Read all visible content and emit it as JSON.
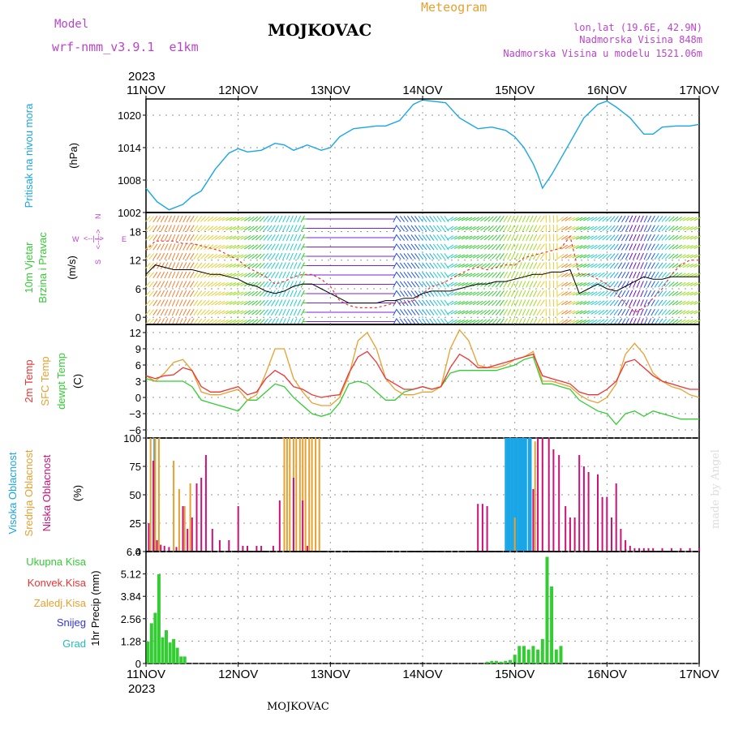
{
  "header": {
    "model_label": "Model",
    "model_name": "wrf-nmm_v3.9.1  e1km",
    "station": "MOJKOVAC",
    "meteogram_label": "Meteogram",
    "lonlat": "lon,lat (19.6E, 42.9N)",
    "altitude": "Nadmorska Visina 848m",
    "model_altitude": "Nadmorska Visina u modelu 1521.06m",
    "year_top": "2023",
    "year_bottom": "2023",
    "footer_station": "MOJKOVAC",
    "credit": "made by Angel"
  },
  "colors": {
    "pressure": "#1aa6e6",
    "green": "#33cc33",
    "red": "#ee3333",
    "orange": "#e8a030",
    "purple": "#bb44cc",
    "magenta": "#cc1177",
    "blue": "#3333ee",
    "cyan": "#22bbbb"
  },
  "chart_data": [
    {
      "type": "line",
      "panel": "pressure",
      "ylabel_lines": [
        "Pritisak na nivou mora",
        "(hPa)"
      ],
      "ylim": [
        1002,
        1023
      ],
      "yticks": [
        "1002",
        "1008",
        "1014",
        "1020"
      ],
      "x_unit": "days since 11NOV 00UTC",
      "x": [
        0,
        0.12,
        0.25,
        0.4,
        0.5,
        0.6,
        0.75,
        0.9,
        1.0,
        1.1,
        1.25,
        1.4,
        1.5,
        1.6,
        1.75,
        1.9,
        2.0,
        2.1,
        2.25,
        2.4,
        2.5,
        2.6,
        2.75,
        2.9,
        3.0,
        3.1,
        3.25,
        3.4,
        3.5,
        3.6,
        3.75,
        3.9,
        4.0,
        4.1,
        4.2,
        4.25,
        4.3,
        4.4,
        4.5,
        4.6,
        4.75,
        4.9,
        5.0,
        5.1,
        5.25,
        5.4,
        5.5,
        5.6,
        5.75,
        5.9,
        6.0
      ],
      "series": [
        {
          "name": "MSLP",
          "values": [
            1006.5,
            1004,
            1002.5,
            1003.5,
            1005,
            1006,
            1010,
            1013,
            1013.8,
            1013.2,
            1013.5,
            1014.8,
            1014.5,
            1013.5,
            1014.5,
            1013.5,
            1014,
            1016,
            1017.5,
            1017.8,
            1018,
            1018,
            1019,
            1022,
            1022.8,
            1022.6,
            1022.3,
            1019.5,
            1018.5,
            1017.5,
            1017.8,
            1017.2,
            1016,
            1014,
            1011,
            1009,
            1006.5,
            1009,
            1012,
            1015,
            1019.5,
            1022,
            1022.6,
            1021.5,
            1019.5,
            1016.5,
            1016.5,
            1017.8,
            1018,
            1018,
            1018.3
          ]
        }
      ]
    },
    {
      "type": "scatter",
      "panel": "wind",
      "ylabel_lines": [
        "10m Vjetar",
        "Brzina i Pravac",
        "(m/s)"
      ],
      "compass": {
        "n": "N",
        "w": "W",
        "e": "E",
        "s": "S",
        "arrows": "<--|-->"
      },
      "ylim": [
        -1.5,
        22
      ],
      "yticks": [
        "0",
        "6",
        "12",
        "18"
      ],
      "x_unit": "days since 11NOV 00UTC",
      "x": [
        0,
        0.1,
        0.2,
        0.3,
        0.4,
        0.5,
        0.6,
        0.7,
        0.8,
        0.9,
        1.0,
        1.1,
        1.2,
        1.3,
        1.4,
        1.5,
        1.6,
        1.7,
        1.8,
        1.9,
        2.0,
        2.1,
        2.2,
        2.3,
        2.4,
        2.5,
        2.6,
        2.7,
        2.8,
        2.9,
        3.0,
        3.1,
        3.2,
        3.3,
        3.4,
        3.5,
        3.6,
        3.7,
        3.8,
        3.9,
        4.0,
        4.1,
        4.2,
        4.3,
        4.4,
        4.5,
        4.6,
        4.7,
        4.8,
        4.9,
        5.0,
        5.1,
        5.2,
        5.3,
        5.4,
        5.5,
        5.6,
        5.7,
        5.8,
        5.9,
        6.0
      ],
      "series": [
        {
          "name": "mean",
          "values": [
            9,
            11,
            10.5,
            10,
            10,
            10,
            9.5,
            9,
            9,
            8.5,
            8,
            7,
            6.5,
            5.5,
            5,
            5.5,
            6.5,
            7,
            7,
            6,
            5,
            4,
            3,
            3,
            3,
            3,
            3.5,
            3.5,
            4,
            4,
            5,
            5.5,
            5.5,
            5.5,
            6,
            6.5,
            7,
            7,
            7.5,
            7.5,
            8,
            8.5,
            9,
            9,
            9.5,
            9.5,
            10,
            5,
            6,
            7,
            6,
            5.5,
            6.5,
            7.5,
            8.5,
            8,
            8,
            8.5,
            8.5,
            8.5,
            8.5
          ]
        },
        {
          "name": "gust",
          "values": [
            14,
            16,
            16,
            16,
            15.5,
            15.5,
            15,
            14.5,
            14,
            13,
            12,
            10.5,
            9.5,
            8.5,
            7,
            7.5,
            8.5,
            9,
            9,
            8,
            6.5,
            3.5,
            2.5,
            2,
            2,
            2,
            2.5,
            3,
            3,
            3.5,
            5,
            6.5,
            7,
            8,
            9,
            10,
            10.5,
            10,
            10.5,
            11,
            11,
            12.5,
            13,
            13.5,
            14,
            14.5,
            17,
            9,
            9,
            8,
            7,
            5,
            3,
            1,
            2,
            4,
            6,
            9,
            11,
            12,
            12
          ]
        }
      ]
    },
    {
      "type": "line",
      "panel": "temperature",
      "ylabel_lines": [
        "2m Temp",
        "SFC Temp",
        "dewpt Temp",
        "(C)"
      ],
      "ylim": [
        -7.5,
        13.5
      ],
      "yticks": [
        "12",
        "9",
        "6",
        "3",
        "0",
        "−3",
        "−6"
      ],
      "x_unit": "days since 11NOV 00UTC",
      "x": [
        0,
        0.1,
        0.2,
        0.3,
        0.4,
        0.5,
        0.6,
        0.7,
        0.8,
        0.9,
        1.0,
        1.1,
        1.2,
        1.3,
        1.4,
        1.5,
        1.6,
        1.7,
        1.8,
        1.9,
        2.0,
        2.1,
        2.2,
        2.3,
        2.4,
        2.5,
        2.6,
        2.7,
        2.8,
        2.9,
        3.0,
        3.1,
        3.2,
        3.3,
        3.4,
        3.5,
        3.6,
        3.7,
        3.8,
        3.9,
        4.0,
        4.1,
        4.2,
        4.3,
        4.4,
        4.5,
        4.6,
        4.7,
        4.8,
        4.9,
        5.0,
        5.1,
        5.2,
        5.3,
        5.4,
        5.5,
        5.6,
        5.7,
        5.8,
        5.9,
        6.0
      ],
      "series": [
        {
          "name": "2m Temp",
          "values": [
            4,
            3.5,
            4,
            4.2,
            5.5,
            5,
            2,
            1,
            1,
            1.5,
            2,
            0.5,
            1,
            3.5,
            5,
            4,
            2,
            1.5,
            0.5,
            0,
            0.3,
            0.5,
            4.5,
            7.5,
            8.5,
            6.5,
            3.5,
            2.5,
            1.5,
            1.5,
            2,
            1.5,
            2,
            5.5,
            8,
            7,
            5.5,
            5.5,
            6,
            6.5,
            7,
            7.5,
            8,
            4,
            3.5,
            3,
            2.5,
            1,
            0.5,
            0.5,
            1.5,
            3,
            6.5,
            7,
            5.5,
            4,
            3,
            2.5,
            2,
            1.5,
            1.5
          ]
        },
        {
          "name": "SFC Temp",
          "values": [
            4,
            3,
            4.5,
            6.5,
            7,
            5,
            1,
            0.5,
            0.5,
            1,
            1.5,
            -0.5,
            0.5,
            4.5,
            9,
            9,
            3.5,
            1,
            -1,
            -1.5,
            -1.5,
            0,
            4,
            10.5,
            12,
            9,
            3.5,
            1.5,
            0.5,
            0.5,
            1,
            1,
            2,
            9,
            12.5,
            10.5,
            6,
            5.5,
            5.5,
            6,
            7,
            7.5,
            8.5,
            3,
            3,
            2.5,
            2,
            0.5,
            -0.5,
            -1,
            0,
            2.5,
            8,
            10,
            8,
            4.5,
            3,
            2,
            1.5,
            0.5,
            0
          ]
        },
        {
          "name": "dewpt Temp",
          "values": [
            3.5,
            3,
            3,
            3,
            3,
            2,
            -0.5,
            -1,
            -1.5,
            -2,
            -2.5,
            -0.5,
            -0.5,
            1,
            2.5,
            2,
            0,
            -1.5,
            -3,
            -3.5,
            -3,
            -1,
            2.5,
            3,
            2.5,
            1,
            -0.5,
            -0.5,
            1,
            1.5,
            2,
            1.5,
            2,
            4.5,
            5,
            5,
            5,
            5,
            5,
            5.5,
            6,
            7,
            7.5,
            2.5,
            2.5,
            2,
            1.5,
            -0.5,
            -1.5,
            -2.5,
            -3,
            -5,
            -3,
            -2.5,
            -3.5,
            -2.5,
            -3,
            -3.5,
            -4,
            -4,
            -4
          ]
        }
      ]
    },
    {
      "type": "bar",
      "panel": "cloudiness",
      "ylabel_lines": [
        "Visoka Oblacnost",
        "Srednja Oblacnost",
        "Niska Oblacnost",
        "(%)"
      ],
      "ylim": [
        0,
        100
      ],
      "yticks": [
        "0",
        "25",
        "50",
        "75",
        "100"
      ],
      "x_unit": "days since 11NOV 00UTC",
      "series": [
        {
          "name": "Visoka Oblacnost",
          "x": [
            0.09,
            3.9,
            3.92,
            3.94,
            3.96,
            3.98,
            4.0,
            4.02,
            4.04,
            4.06,
            4.08,
            4.1,
            4.12,
            4.15,
            4.17,
            5.2
          ],
          "values": [
            100,
            100,
            100,
            100,
            100,
            100,
            100,
            100,
            100,
            100,
            100,
            100,
            100,
            100,
            100,
            2
          ]
        },
        {
          "name": "Srednja Oblacnost",
          "x": [
            0.05,
            0.1,
            0.14,
            0.3,
            0.36,
            0.42,
            0.48,
            1.5,
            1.53,
            1.56,
            1.6,
            1.63,
            1.67,
            1.7,
            1.73,
            1.77,
            1.8,
            1.84,
            1.88,
            4.0,
            4.22,
            4.6
          ],
          "values": [
            100,
            100,
            100,
            80,
            55,
            40,
            60,
            100,
            100,
            100,
            100,
            100,
            100,
            100,
            100,
            100,
            100,
            100,
            100,
            30,
            97,
            20
          ]
        },
        {
          "name": "Niska Oblacnost",
          "x": [
            0.03,
            0.08,
            0.12,
            0.16,
            0.2,
            0.25,
            0.33,
            0.4,
            0.45,
            0.5,
            0.55,
            0.6,
            0.65,
            0.72,
            0.8,
            0.9,
            1.0,
            1.05,
            1.1,
            1.2,
            1.25,
            1.38,
            1.45,
            1.6,
            1.7,
            1.75,
            3.6,
            3.65,
            3.7,
            4.2,
            4.25,
            4.3,
            4.37,
            4.42,
            4.48,
            4.55,
            4.6,
            4.65,
            4.7,
            4.75,
            4.8,
            4.9,
            4.95,
            5.0,
            5.05,
            5.1,
            5.15,
            5.2,
            5.25,
            5.3,
            5.35,
            5.4,
            5.45,
            5.5,
            5.6,
            5.7,
            5.8,
            5.9,
            6.0
          ],
          "values": [
            25,
            80,
            10,
            6,
            5,
            4,
            4,
            40,
            20,
            30,
            60,
            65,
            85,
            20,
            10,
            10,
            40,
            5,
            5,
            5,
            5,
            5,
            45,
            65,
            45,
            5,
            42,
            42,
            40,
            55,
            100,
            100,
            100,
            90,
            85,
            40,
            30,
            30,
            85,
            75,
            70,
            68,
            48,
            48,
            30,
            60,
            20,
            10,
            5,
            3,
            3,
            3,
            3,
            3,
            3,
            3,
            3,
            3,
            3
          ]
        }
      ]
    },
    {
      "type": "bar",
      "panel": "precipitation",
      "legend": [
        "Ukupna Kisa",
        "Konvek.Kisa",
        "Zaledj.Kisa",
        "Snijeg",
        "Grad"
      ],
      "ylabel": "1hr Precip (mm)",
      "ylim": [
        0,
        6.4
      ],
      "yticks": [
        "0",
        "1.28",
        "2.56",
        "3.84",
        "5.12",
        "6.4"
      ],
      "x_unit": "days since 11NOV 00UTC",
      "x": [
        0.02,
        0.06,
        0.1,
        0.14,
        0.18,
        0.22,
        0.26,
        0.3,
        0.34,
        0.38,
        0.42,
        3.7,
        3.75,
        3.8,
        3.85,
        3.9,
        3.95,
        4.0,
        4.05,
        4.1,
        4.15,
        4.2,
        4.25,
        4.3,
        4.35,
        4.4,
        4.45,
        4.5
      ],
      "values": [
        1.25,
        2.3,
        2.9,
        5.1,
        1.5,
        1.9,
        1.2,
        1.4,
        0.9,
        0.4,
        0.4,
        0.1,
        0.15,
        0.15,
        0.1,
        0.15,
        0.2,
        0.5,
        1.0,
        1.0,
        0.8,
        1.0,
        0.8,
        1.4,
        6.1,
        4.4,
        0.8,
        1.0
      ]
    }
  ],
  "xaxis": {
    "ticks": [
      "11NOV",
      "12NOV",
      "13NOV",
      "14NOV",
      "15NOV",
      "16NOV",
      "17NOV"
    ]
  }
}
